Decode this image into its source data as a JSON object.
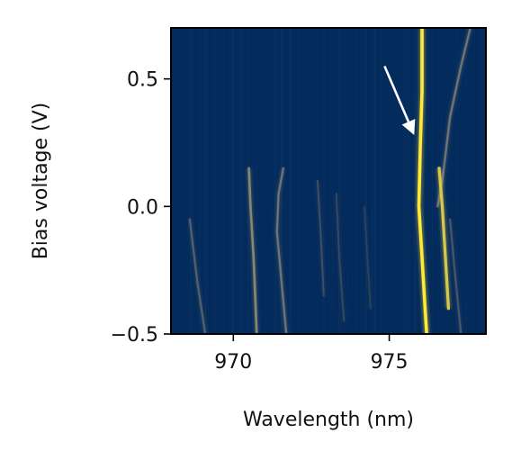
{
  "chart_data": {
    "type": "heatmap",
    "title": "",
    "xlabel": "Wavelength (nm)",
    "ylabel": "Bias voltage (V)",
    "xlim": [
      968.0,
      978.1
    ],
    "ylim": [
      -0.5,
      0.7
    ],
    "xticks": [
      970,
      975
    ],
    "xtick_labels": [
      "970",
      "975"
    ],
    "yticks": [
      0.5,
      0.0,
      -0.5
    ],
    "ytick_labels": [
      "0.5",
      "0.0",
      "−0.5"
    ],
    "colormap": "cividis",
    "colors": {
      "background": "#032b5c",
      "low": "#00224e",
      "mid": "#7c7b78",
      "high": "#fee838",
      "arrow": "#ffffff"
    },
    "features": [
      {
        "x": [
          976.05,
          976.05,
          976.0,
          975.95,
          976.05,
          976.15,
          976.2
        ],
        "y": [
          0.7,
          0.45,
          0.25,
          0.0,
          -0.2,
          -0.4,
          -0.5
        ],
        "intensity": 1.0
      },
      {
        "x": [
          977.6,
          977.3,
          976.95,
          976.8,
          976.7,
          976.55
        ],
        "y": [
          0.7,
          0.55,
          0.35,
          0.2,
          0.1,
          0.0
        ],
        "intensity": 0.45
      },
      {
        "x": [
          976.6,
          976.7,
          976.8,
          976.9
        ],
        "y": [
          0.15,
          0.0,
          -0.2,
          -0.4
        ],
        "intensity": 0.85
      },
      {
        "x": [
          970.5,
          970.55,
          970.65,
          970.75
        ],
        "y": [
          0.15,
          0.0,
          -0.2,
          -0.5
        ],
        "intensity": 0.55
      },
      {
        "x": [
          971.6,
          971.45,
          971.4,
          971.7
        ],
        "y": [
          0.15,
          0.05,
          -0.1,
          -0.5
        ],
        "intensity": 0.45
      },
      {
        "x": [
          968.6,
          968.85,
          969.1
        ],
        "y": [
          -0.05,
          -0.3,
          -0.5
        ],
        "intensity": 0.35
      },
      {
        "x": [
          976.95,
          977.1,
          977.3
        ],
        "y": [
          -0.05,
          -0.25,
          -0.5
        ],
        "intensity": 0.3
      },
      {
        "x": [
          972.7,
          972.8,
          972.9
        ],
        "y": [
          0.1,
          -0.1,
          -0.35
        ],
        "intensity": 0.25
      },
      {
        "x": [
          973.3,
          973.4,
          973.55
        ],
        "y": [
          0.05,
          -0.2,
          -0.45
        ],
        "intensity": 0.22
      },
      {
        "x": [
          974.2,
          974.3,
          974.4
        ],
        "y": [
          0.0,
          -0.2,
          -0.4
        ],
        "intensity": 0.18
      }
    ],
    "annotations": [
      {
        "type": "arrow",
        "from": [
          974.85,
          0.55
        ],
        "to": [
          975.8,
          0.28
        ]
      }
    ]
  }
}
